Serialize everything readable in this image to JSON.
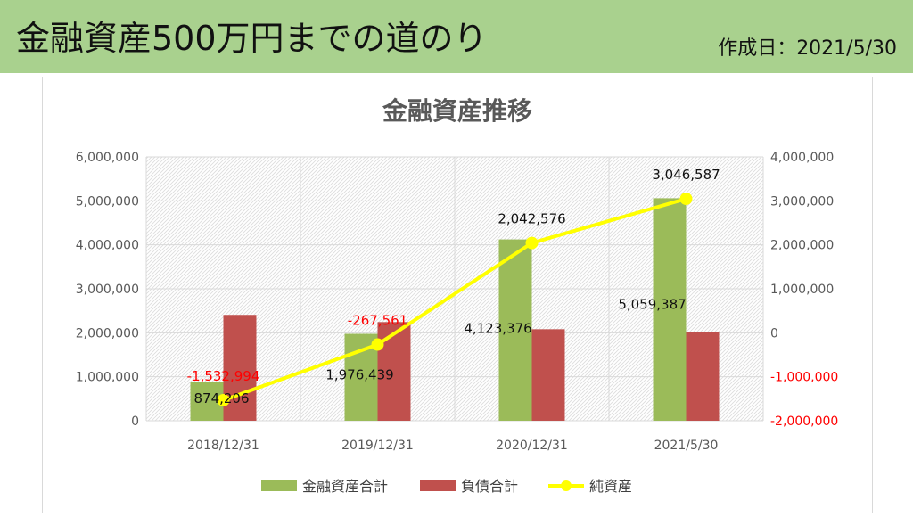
{
  "header": {
    "title": "金融資産500万円までの道のり",
    "date": "作成日：2021/5/30"
  },
  "colors": {
    "banner": "#a9d18e",
    "assets": "#9bbb59",
    "liabilities": "#c0504d",
    "net": "#ffff00",
    "negative": "#ff0000"
  },
  "chart_data": {
    "type": "bar",
    "title": "金融資産推移",
    "categories": [
      "2018/12/31",
      "2019/12/31",
      "2020/12/31",
      "2021/5/30"
    ],
    "series": [
      {
        "name": "金融資産合計",
        "type": "bar",
        "axis": "left",
        "color": "#9bbb59",
        "values": [
          874206,
          1976439,
          4123376,
          5059387
        ],
        "labels": [
          "874,206",
          "1,976,439",
          "4,123,376",
          "5,059,387"
        ]
      },
      {
        "name": "負債合計",
        "type": "bar",
        "axis": "left",
        "color": "#c0504d",
        "values": [
          2407200,
          2244000,
          2080800,
          2012800
        ]
      },
      {
        "name": "純資産",
        "type": "line",
        "axis": "right",
        "color": "#ffff00",
        "values": [
          -1532994,
          -267561,
          2042576,
          3046587
        ],
        "labels": [
          "-1,532,994",
          "-267,561",
          "2,042,576",
          "3,046,587"
        ]
      }
    ],
    "y_left": {
      "lim": [
        0,
        6000000
      ],
      "ticks": [
        "6,000,000",
        "5,000,000",
        "4,000,000",
        "3,000,000",
        "2,000,000",
        "1,000,000",
        "0"
      ]
    },
    "y_right": {
      "lim": [
        -2000000,
        4000000
      ],
      "ticks": [
        "4,000,000",
        "3,000,000",
        "2,000,000",
        "1,000,000",
        "0",
        "-1,000,000",
        "-2,000,000"
      ]
    },
    "grid": true,
    "legend": "bottom"
  }
}
